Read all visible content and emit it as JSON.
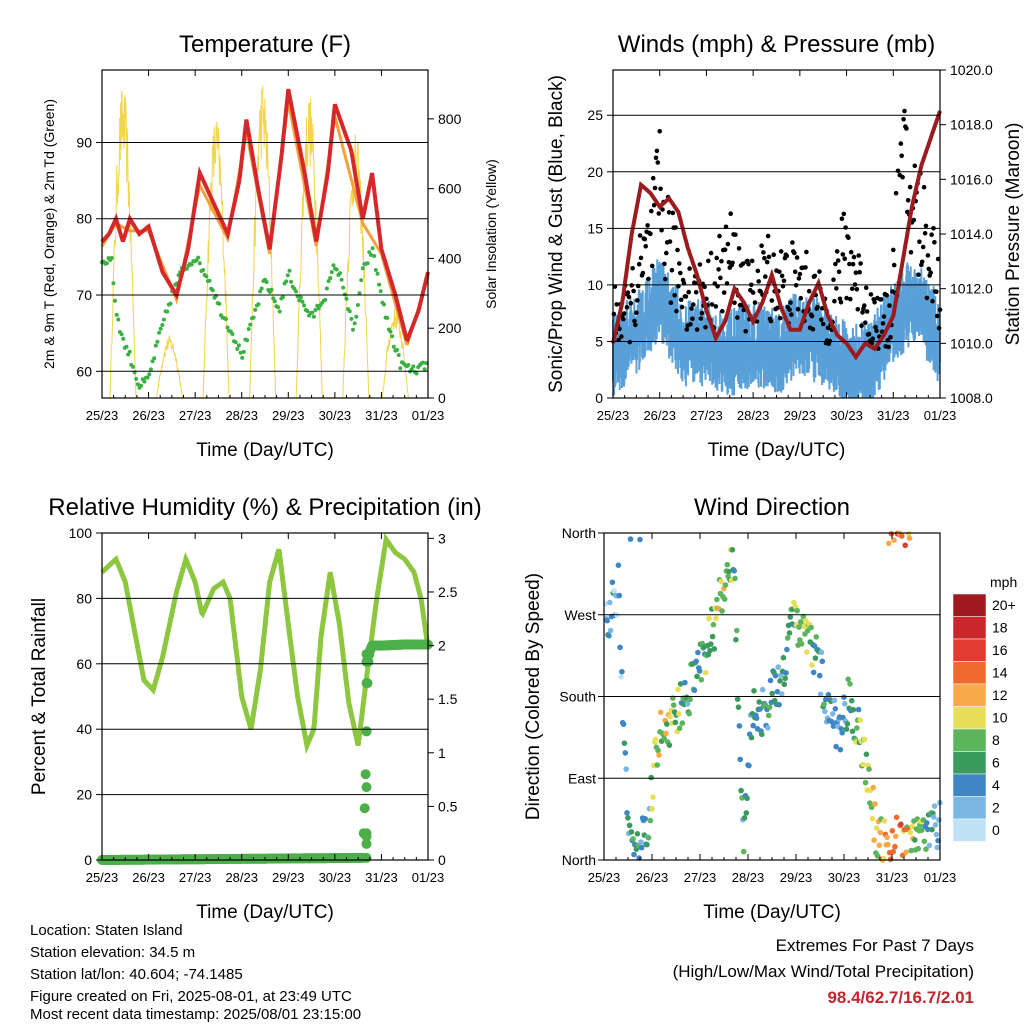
{
  "chart_data": [
    {
      "type": "line",
      "title": "Temperature (F)",
      "xlabel": "Time (Day/UTC)",
      "ylabel_left": "2m & 9m T (Red, Orange) & 2m Td (Green)",
      "ylabel_right": "Solar Insolation (Yellow)",
      "x_ticks": [
        "25/23",
        "26/23",
        "27/23",
        "28/23",
        "29/23",
        "30/23",
        "31/23",
        "01/23"
      ],
      "y_ticks_left": [
        60,
        70,
        80,
        90
      ],
      "y_ticks_right": [
        0,
        200,
        400,
        600,
        800
      ],
      "ylim_left": [
        56.5,
        99.5
      ],
      "ylim_right": [
        0,
        940
      ],
      "grid": "horizontal",
      "series": [
        {
          "axis": "left",
          "color": "#d6282a",
          "x": [
            0,
            0.15,
            0.3,
            0.45,
            0.6,
            0.8,
            1.0,
            1.3,
            1.6,
            1.85,
            2.1,
            2.4,
            2.7,
            2.95,
            3.1,
            3.35,
            3.6,
            3.85,
            4.0,
            4.35,
            4.6,
            4.85,
            5.0,
            5.35,
            5.6,
            5.8,
            6.0,
            6.3,
            6.55,
            6.8,
            7.0
          ],
          "values": [
            77,
            78,
            80,
            77,
            80,
            78,
            79,
            73,
            70,
            76,
            86,
            82,
            78,
            85,
            93,
            84,
            76,
            88,
            97,
            86,
            77,
            86,
            95,
            89,
            80,
            86,
            76,
            70,
            64,
            68,
            73
          ]
        },
        {
          "axis": "left",
          "color": "#f5a03a",
          "x": [
            0,
            0.3,
            0.6,
            1.0,
            1.6,
            2.1,
            2.7,
            3.1,
            3.6,
            4.0,
            4.6,
            5.0,
            5.6,
            6.0,
            6.55,
            7.0
          ],
          "values": [
            77,
            80,
            79,
            79,
            70,
            85,
            78,
            92,
            76,
            96,
            77,
            94,
            80,
            76,
            64,
            73
          ]
        },
        {
          "axis": "left",
          "color": "#3cb043",
          "x": [
            0,
            0.2,
            0.3,
            0.45,
            0.6,
            0.8,
            1.0,
            1.2,
            1.5,
            1.7,
            2.0,
            2.3,
            2.55,
            2.8,
            3.0,
            3.2,
            3.5,
            3.8,
            4.0,
            4.2,
            4.5,
            4.8,
            5.0,
            5.2,
            5.4,
            5.6,
            5.8,
            6.1,
            6.4,
            6.7,
            7.0
          ],
          "values": [
            74,
            75,
            68,
            64,
            62,
            58,
            59,
            64,
            70,
            73,
            75,
            72,
            68,
            65,
            62,
            66,
            72,
            68,
            73,
            70,
            67,
            70,
            74,
            71,
            65,
            73,
            76,
            67,
            61,
            60,
            61
          ]
        },
        {
          "axis": "right",
          "color": "#f2d54b",
          "peaks_x": [
            0.45,
            1.45,
            2.45,
            3.45,
            4.45,
            5.45,
            6.3
          ],
          "peaks": [
            900,
            180,
            820,
            920,
            880,
            760,
            260
          ]
        }
      ]
    },
    {
      "type": "scatter",
      "title": "Winds (mph) & Pressure (mb)",
      "xlabel": "Time (Day/UTC)",
      "ylabel_left": "Sonic/Prop Wind & Gust (Blue, Black)",
      "ylabel_right": "Station Pressure (Maroon)",
      "x_ticks": [
        "25/23",
        "26/23",
        "27/23",
        "28/23",
        "29/23",
        "30/23",
        "31/23",
        "01/23"
      ],
      "y_ticks_left": [
        0,
        5,
        10,
        15,
        20,
        25
      ],
      "y_ticks_right": [
        1008,
        1010,
        1012,
        1014,
        1016,
        1018,
        1020
      ],
      "ylim_left": [
        0,
        29
      ],
      "ylim_right": [
        1008,
        1020
      ],
      "grid": "horizontal",
      "series": [
        {
          "name": "pressure",
          "axis": "right",
          "color": "#9b1b1f",
          "x": [
            0,
            0.2,
            0.4,
            0.6,
            0.8,
            1.0,
            1.2,
            1.4,
            1.6,
            1.8,
            2.0,
            2.2,
            2.4,
            2.6,
            2.8,
            3.0,
            3.2,
            3.4,
            3.6,
            3.8,
            4.0,
            4.2,
            4.4,
            4.6,
            4.8,
            5.0,
            5.2,
            5.4,
            5.6,
            5.8,
            6.0,
            6.2,
            6.4,
            6.6,
            6.8,
            7.0
          ],
          "values": [
            1010,
            1011.5,
            1014,
            1015.8,
            1015.5,
            1015,
            1015.3,
            1014.8,
            1013.5,
            1012.5,
            1011.2,
            1010.2,
            1010.8,
            1012,
            1011.5,
            1010.8,
            1011.5,
            1012.5,
            1011.3,
            1010.5,
            1010.5,
            1011.5,
            1012.2,
            1011,
            1010.3,
            1010,
            1009.5,
            1010,
            1009.8,
            1010.3,
            1011,
            1013,
            1015,
            1016.5,
            1017.5,
            1018.5
          ]
        },
        {
          "name": "wind",
          "axis": "left",
          "color": "#5aa0d8",
          "x": [
            0,
            0.5,
            1.0,
            1.5,
            2.0,
            2.5,
            3.0,
            3.5,
            4.0,
            4.5,
            5.0,
            5.5,
            6.0,
            6.5,
            7.0
          ],
          "values": [
            5,
            7,
            10,
            6,
            6,
            5,
            6,
            5,
            7,
            6,
            4,
            4,
            8,
            10,
            6
          ]
        },
        {
          "name": "gust",
          "axis": "left",
          "color": "#000000",
          "x": [
            0.3,
            0.8,
            1.0,
            1.3,
            1.7,
            2.1,
            2.5,
            2.9,
            3.3,
            3.6,
            4.0,
            4.3,
            4.6,
            5.0,
            5.5,
            5.9,
            6.2,
            6.5,
            6.8,
            7.0
          ],
          "values": [
            10,
            18,
            24,
            16,
            12,
            13,
            17,
            12,
            15,
            14,
            14,
            12,
            10,
            18,
            10,
            9,
            27,
            22,
            18,
            12
          ]
        }
      ]
    },
    {
      "type": "line",
      "title": "Relative Humidity (%) & Precipitation (in)",
      "xlabel": "Time (Day/UTC)",
      "ylabel_left": "Percent & Total Rainfall",
      "x_ticks": [
        "25/23",
        "26/23",
        "27/23",
        "28/23",
        "29/23",
        "30/23",
        "31/23",
        "01/23"
      ],
      "y_ticks_left": [
        0,
        20,
        40,
        60,
        80,
        100
      ],
      "y_ticks_right": [
        0.0,
        0.5,
        1.0,
        1.5,
        2.0,
        2.5,
        3.0
      ],
      "ylim_left": [
        0,
        100
      ],
      "ylim_right": [
        0,
        3.05
      ],
      "grid": "horizontal",
      "series": [
        {
          "name": "rh",
          "axis": "left",
          "color": "#8dc63f",
          "x": [
            0,
            0.15,
            0.3,
            0.5,
            0.7,
            0.9,
            1.1,
            1.3,
            1.6,
            1.8,
            2.0,
            2.15,
            2.4,
            2.6,
            2.75,
            3.0,
            3.2,
            3.4,
            3.6,
            3.8,
            4.0,
            4.2,
            4.4,
            4.55,
            4.7,
            4.9,
            5.1,
            5.3,
            5.5,
            5.7,
            5.9,
            6.1,
            6.3,
            6.5,
            6.7,
            6.85,
            7.0
          ],
          "values": [
            88,
            90,
            92,
            85,
            70,
            55,
            52,
            62,
            82,
            92,
            85,
            75,
            83,
            85,
            80,
            50,
            40,
            58,
            85,
            95,
            72,
            50,
            35,
            40,
            68,
            88,
            72,
            48,
            35,
            58,
            80,
            98,
            94,
            92,
            88,
            80,
            65
          ]
        },
        {
          "name": "precip",
          "axis": "right",
          "color": "#4caf4a",
          "x": [
            0,
            5.6,
            5.62,
            5.65,
            5.68,
            5.7,
            5.72,
            5.75,
            5.8,
            6.0,
            6.5,
            7.0
          ],
          "values": [
            0,
            0.02,
            0.25,
            0.6,
            1.2,
            1.65,
            1.85,
            1.95,
            2.0,
            2.0,
            2.01,
            2.01
          ]
        }
      ]
    },
    {
      "type": "scatter",
      "title": "Wind Direction",
      "xlabel": "Time (Day/UTC)",
      "ylabel": "Direction (Colored By Speed)",
      "x_ticks": [
        "25/23",
        "26/23",
        "27/23",
        "28/23",
        "29/23",
        "30/23",
        "31/23",
        "01/23"
      ],
      "y_ticks": [
        "North",
        "East",
        "South",
        "West",
        "North"
      ],
      "ylim": [
        0,
        360
      ],
      "grid": "horizontal",
      "legend_title": "mph",
      "legend_labels": [
        "20+",
        "18",
        "16",
        "14",
        "12",
        "10",
        "8",
        "6",
        "4",
        "2",
        "0"
      ],
      "legend_colors": [
        "#9e1a1e",
        "#c9272c",
        "#e23b2f",
        "#ef6a2d",
        "#f8a94a",
        "#e8df58",
        "#5cb55c",
        "#3b9a5e",
        "#3f86c4",
        "#7cb7e4",
        "#bfe2f6"
      ],
      "series": [
        {
          "name": "direction",
          "x": [
            0.1,
            0.3,
            0.5,
            0.7,
            0.9,
            1.1,
            1.3,
            1.5,
            1.7,
            1.9,
            2.1,
            2.3,
            2.5,
            2.7,
            2.9,
            3.1,
            3.3,
            3.5,
            3.7,
            3.9,
            4.1,
            4.3,
            4.5,
            4.7,
            4.9,
            5.1,
            5.3,
            5.5,
            5.7,
            5.9,
            6.1,
            6.3,
            6.5,
            6.7,
            6.9
          ],
          "values": [
            270,
            300,
            20,
            10,
            30,
            130,
            150,
            160,
            180,
            200,
            230,
            260,
            300,
            330,
            20,
            170,
            160,
            180,
            190,
            280,
            250,
            240,
            210,
            160,
            140,
            180,
            140,
            100,
            20,
            15,
            20,
            10,
            20,
            25,
            40
          ],
          "speeds": [
            3,
            2,
            4,
            5,
            4,
            10,
            9,
            8,
            5,
            6,
            7,
            8,
            9,
            7,
            5,
            4,
            5,
            6,
            4,
            7,
            8,
            7,
            5,
            4,
            3,
            6,
            7,
            8,
            10,
            12,
            14,
            12,
            8,
            6,
            4
          ]
        }
      ]
    }
  ],
  "info": {
    "location": "Location: Staten Island",
    "elevation": "Station elevation: 34.5 m",
    "latlon": "Station lat/lon: 40.604; -74.1485",
    "created": "Figure created on Fri, 2025-08-01, at 23:49 UTC",
    "recent": "Most recent data timestamp: 2025/08/01 23:15:00"
  },
  "extremes": {
    "title": "Extremes For Past 7 Days",
    "subtitle": "(High/Low/Max Wind/Total Precipitation)",
    "values": "98.4/62.7/16.7/2.01"
  }
}
